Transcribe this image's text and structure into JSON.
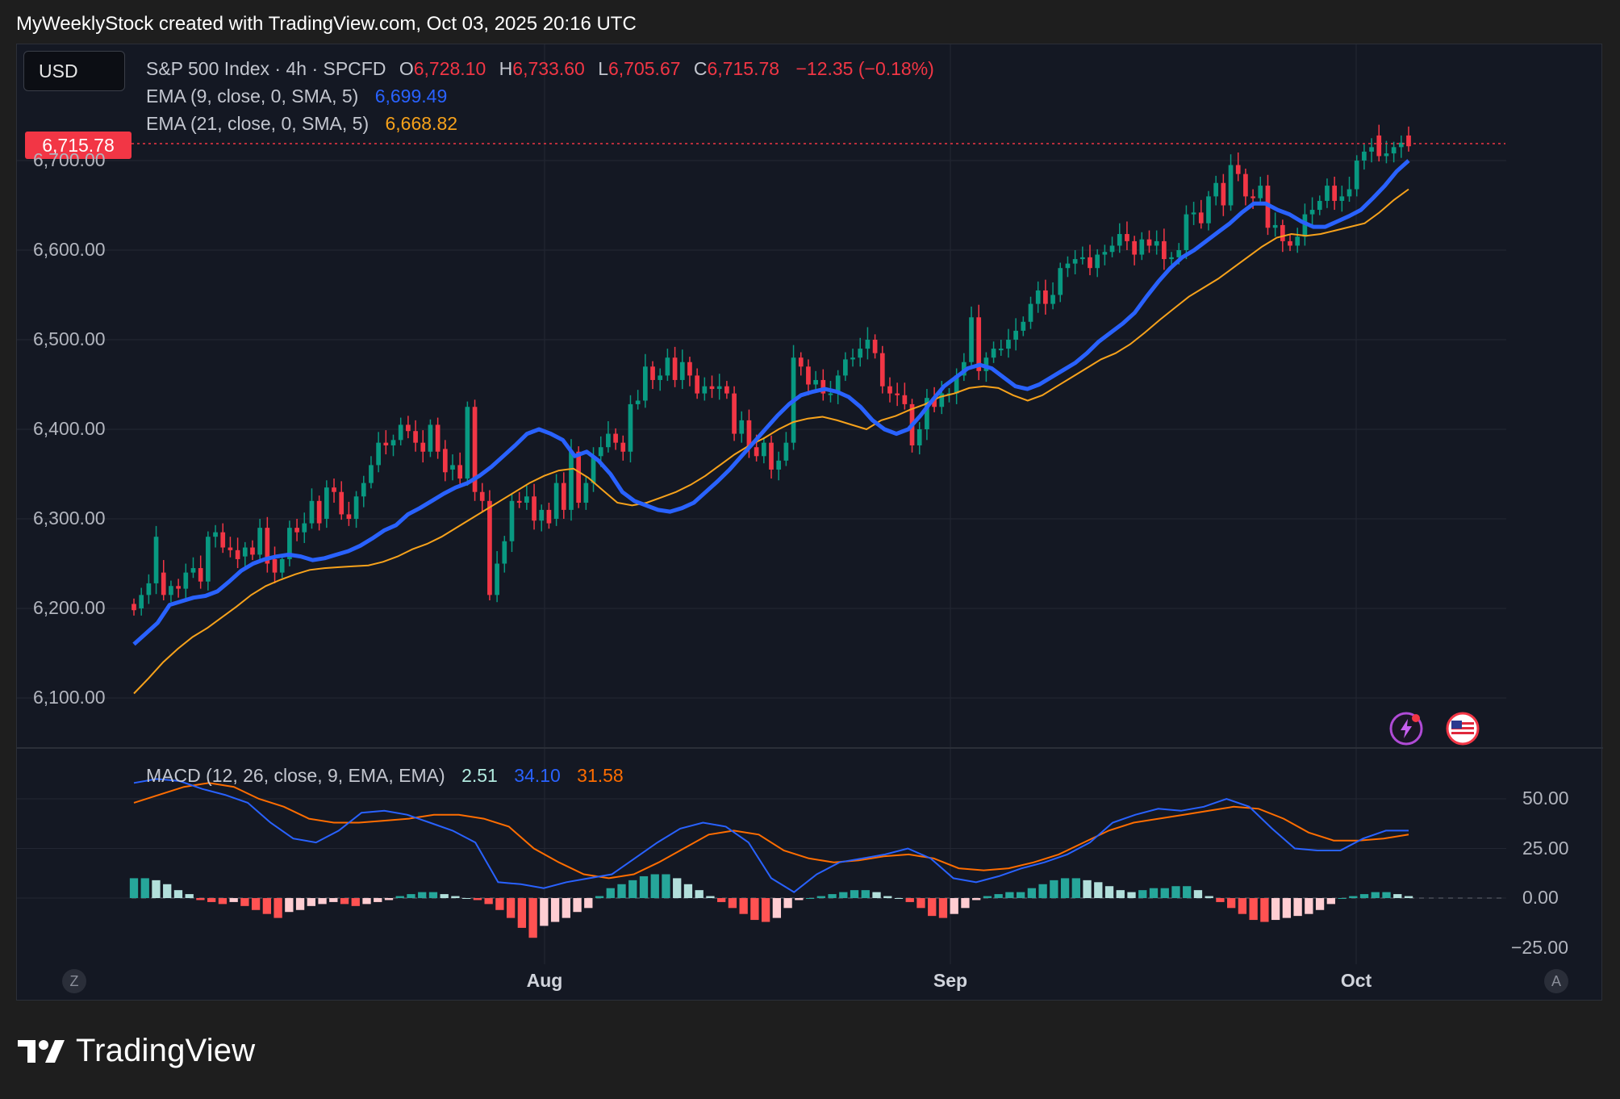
{
  "caption": "MyWeeklyStock created with TradingView.com, Oct 03, 2025 20:16 UTC",
  "currency": "USD",
  "legend": {
    "symbol": "S&P 500 Index · 4h · SPCFD",
    "o_label": "O",
    "o_value": "6,728.10",
    "h_label": "H",
    "h_value": "6,733.60",
    "l_label": "L",
    "l_value": "6,705.67",
    "c_label": "C",
    "c_value": "6,715.78",
    "change": "−12.35 (−0.18%)",
    "ema9_label": "EMA (9, close, 0, SMA, 5)",
    "ema9_value": "6,699.49",
    "ema21_label": "EMA (21, close, 0, SMA, 5)",
    "ema21_value": "6,668.82",
    "macd_label": "MACD (12, 26, close, 9, EMA, EMA)",
    "macd_hist": "2.51",
    "macd_value": "34.10",
    "macd_signal": "31.58"
  },
  "last_price_badge": "6,715.78",
  "brand": "TradingView",
  "colors": {
    "up_candle": "#089981",
    "down_candle": "#f23645",
    "ema9": "#2962ff",
    "ema21": "#f7a21b",
    "macd": "#2962ff",
    "signal": "#ff6d00",
    "hist_pos_strong": "#26a69a",
    "hist_pos_weak": "#b2dfdb",
    "hist_neg_strong": "#ff5252",
    "hist_neg_weak": "#ffcdd2"
  },
  "chart_data": {
    "type": "candlestick",
    "title": "S&P 500 Index · 4h · SPCFD",
    "x_ticks": [
      "Aug",
      "Sep",
      "Oct"
    ],
    "y_ticks": [
      "6,100.00",
      "6,200.00",
      "6,300.00",
      "6,400.00",
      "6,500.00",
      "6,600.00",
      "6,700.00"
    ],
    "ylim": [
      6045,
      6765
    ],
    "macd_y_ticks": [
      "50.00",
      "25.00",
      "0.00",
      "−25.00"
    ],
    "macd_ylim": [
      -32,
      62
    ],
    "grid": true,
    "icons": [
      "flash-alert-icon",
      "us-flag-icon"
    ],
    "candles": [
      [
        6205,
        6198
      ],
      [
        6200,
        6215
      ],
      [
        6215,
        6228
      ],
      [
        6228,
        6280
      ],
      [
        6240,
        6215
      ],
      [
        6215,
        6225
      ],
      [
        6225,
        6222
      ],
      [
        6222,
        6240
      ],
      [
        6240,
        6245
      ],
      [
        6245,
        6230
      ],
      [
        6230,
        6280
      ],
      [
        6280,
        6285
      ],
      [
        6285,
        6268
      ],
      [
        6268,
        6265
      ],
      [
        6265,
        6255
      ],
      [
        6258,
        6268
      ],
      [
        6268,
        6260
      ],
      [
        6260,
        6290
      ],
      [
        6290,
        6250
      ],
      [
        6255,
        6240
      ],
      [
        6240,
        6255
      ],
      [
        6255,
        6290
      ],
      [
        6290,
        6285
      ],
      [
        6285,
        6295
      ],
      [
        6295,
        6320
      ],
      [
        6320,
        6295
      ],
      [
        6300,
        6335
      ],
      [
        6335,
        6330
      ],
      [
        6330,
        6305
      ],
      [
        6305,
        6300
      ],
      [
        6300,
        6325
      ],
      [
        6325,
        6340
      ],
      [
        6340,
        6360
      ],
      [
        6360,
        6385
      ],
      [
        6385,
        6382
      ],
      [
        6382,
        6388
      ],
      [
        6388,
        6405
      ],
      [
        6405,
        6398
      ],
      [
        6398,
        6385
      ],
      [
        6385,
        6375
      ],
      [
        6375,
        6405
      ],
      [
        6405,
        6375
      ],
      [
        6378,
        6352
      ],
      [
        6355,
        6360
      ],
      [
        6360,
        6345
      ],
      [
        6345,
        6425
      ],
      [
        6425,
        6330
      ],
      [
        6330,
        6320
      ],
      [
        6320,
        6215
      ],
      [
        6215,
        6250
      ],
      [
        6250,
        6275
      ],
      [
        6275,
        6320
      ],
      [
        6320,
        6318
      ],
      [
        6318,
        6325
      ],
      [
        6325,
        6298
      ],
      [
        6298,
        6310
      ],
      [
        6310,
        6295
      ],
      [
        6300,
        6340
      ],
      [
        6340,
        6310
      ],
      [
        6310,
        6375
      ],
      [
        6375,
        6318
      ],
      [
        6318,
        6340
      ],
      [
        6340,
        6370
      ],
      [
        6370,
        6380
      ],
      [
        6380,
        6395
      ],
      [
        6395,
        6385
      ],
      [
        6385,
        6375
      ],
      [
        6375,
        6428
      ],
      [
        6428,
        6432
      ],
      [
        6432,
        6470
      ],
      [
        6470,
        6455
      ],
      [
        6455,
        6460
      ],
      [
        6460,
        6480
      ],
      [
        6480,
        6455
      ],
      [
        6455,
        6475
      ],
      [
        6475,
        6460
      ],
      [
        6460,
        6440
      ],
      [
        6440,
        6448
      ],
      [
        6448,
        6445
      ],
      [
        6445,
        6448
      ],
      [
        6448,
        6440
      ],
      [
        6440,
        6395
      ],
      [
        6395,
        6410
      ],
      [
        6410,
        6380
      ],
      [
        6380,
        6370
      ],
      [
        6370,
        6385
      ],
      [
        6385,
        6355
      ],
      [
        6355,
        6365
      ],
      [
        6365,
        6385
      ],
      [
        6385,
        6480
      ],
      [
        6480,
        6470
      ],
      [
        6470,
        6450
      ],
      [
        6450,
        6455
      ],
      [
        6455,
        6440
      ],
      [
        6440,
        6440
      ],
      [
        6440,
        6460
      ],
      [
        6460,
        6478
      ],
      [
        6478,
        6480
      ],
      [
        6480,
        6490
      ],
      [
        6490,
        6500
      ],
      [
        6500,
        6485
      ],
      [
        6485,
        6448
      ],
      [
        6448,
        6440
      ],
      [
        6440,
        6438
      ],
      [
        6438,
        6428
      ],
      [
        6428,
        6382
      ],
      [
        6382,
        6400
      ],
      [
        6400,
        6435
      ],
      [
        6435,
        6425
      ],
      [
        6425,
        6440
      ],
      [
        6440,
        6440
      ],
      [
        6440,
        6460
      ],
      [
        6460,
        6475
      ],
      [
        6475,
        6525
      ],
      [
        6525,
        6465
      ],
      [
        6465,
        6480
      ],
      [
        6480,
        6490
      ],
      [
        6490,
        6490
      ],
      [
        6490,
        6500
      ],
      [
        6500,
        6510
      ],
      [
        6510,
        6520
      ],
      [
        6520,
        6540
      ],
      [
        6540,
        6555
      ],
      [
        6555,
        6540
      ],
      [
        6540,
        6550
      ],
      [
        6550,
        6580
      ],
      [
        6580,
        6585
      ],
      [
        6585,
        6590
      ],
      [
        6590,
        6592
      ],
      [
        6592,
        6580
      ],
      [
        6580,
        6595
      ],
      [
        6595,
        6598
      ],
      [
        6598,
        6605
      ],
      [
        6605,
        6618
      ],
      [
        6618,
        6610
      ],
      [
        6610,
        6595
      ],
      [
        6595,
        6612
      ],
      [
        6612,
        6605
      ],
      [
        6605,
        6610
      ],
      [
        6610,
        6590
      ],
      [
        6590,
        6592
      ],
      [
        6592,
        6600
      ],
      [
        6600,
        6640
      ],
      [
        6640,
        6642
      ],
      [
        6642,
        6630
      ],
      [
        6630,
        6660
      ],
      [
        6660,
        6675
      ],
      [
        6675,
        6650
      ],
      [
        6650,
        6695
      ],
      [
        6695,
        6685
      ],
      [
        6685,
        6660
      ],
      [
        6660,
        6658
      ],
      [
        6658,
        6672
      ],
      [
        6672,
        6625
      ],
      [
        6625,
        6628
      ],
      [
        6628,
        6610
      ],
      [
        6610,
        6605
      ],
      [
        6605,
        6615
      ],
      [
        6615,
        6640
      ],
      [
        6640,
        6645
      ],
      [
        6645,
        6655
      ],
      [
        6655,
        6672
      ],
      [
        6672,
        6655
      ],
      [
        6655,
        6660
      ],
      [
        6660,
        6668
      ],
      [
        6668,
        6700
      ],
      [
        6700,
        6710
      ],
      [
        6710,
        6715
      ],
      [
        6728,
        6705
      ],
      [
        6705,
        6708
      ],
      [
        6708,
        6715
      ],
      [
        6715,
        6720
      ],
      [
        6728,
        6716
      ]
    ],
    "ema9_series": [
      6160,
      6172,
      6184,
      6204,
      6208,
      6212,
      6214,
      6219,
      6230,
      6242,
      6250,
      6255,
      6258,
      6260,
      6258,
      6254,
      6256,
      6260,
      6264,
      6270,
      6278,
      6287,
      6293,
      6305,
      6312,
      6320,
      6328,
      6335,
      6340,
      6348,
      6358,
      6370,
      6382,
      6395,
      6400,
      6395,
      6388,
      6370,
      6375,
      6365,
      6350,
      6330,
      6320,
      6315,
      6310,
      6308,
      6312,
      6318,
      6330,
      6342,
      6355,
      6370,
      6385,
      6400,
      6415,
      6428,
      6438,
      6442,
      6445,
      6442,
      6436,
      6425,
      6410,
      6400,
      6395,
      6400,
      6415,
      6432,
      6448,
      6458,
      6468,
      6472,
      6468,
      6458,
      6448,
      6445,
      6450,
      6458,
      6466,
      6474,
      6485,
      6498,
      6508,
      6518,
      6530,
      6548,
      6565,
      6580,
      6592,
      6600,
      6610,
      6620,
      6630,
      6642,
      6652,
      6652,
      6645,
      6640,
      6632,
      6626,
      6626,
      6632,
      6638,
      6645,
      6658,
      6672,
      6688,
      6700
    ],
    "ema21_series": [
      6105,
      6122,
      6140,
      6155,
      6168,
      6178,
      6190,
      6202,
      6215,
      6225,
      6232,
      6238,
      6243,
      6245,
      6246,
      6247,
      6248,
      6252,
      6258,
      6266,
      6272,
      6280,
      6290,
      6300,
      6310,
      6320,
      6330,
      6340,
      6348,
      6354,
      6356,
      6346,
      6332,
      6318,
      6315,
      6318,
      6324,
      6330,
      6338,
      6348,
      6360,
      6372,
      6382,
      6390,
      6400,
      6408,
      6412,
      6414,
      6410,
      6405,
      6400,
      6410,
      6415,
      6422,
      6428,
      6436,
      6440,
      6446,
      6448,
      6446,
      6438,
      6432,
      6438,
      6448,
      6458,
      6468,
      6478,
      6485,
      6495,
      6508,
      6522,
      6535,
      6548,
      6558,
      6568,
      6580,
      6592,
      6604,
      6614,
      6618,
      6616,
      6618,
      6622,
      6626,
      6630,
      6642,
      6656,
      6668
    ],
    "macd_series": [
      58,
      60,
      59,
      55,
      52,
      48,
      38,
      30,
      28,
      34,
      43,
      44,
      42,
      38,
      34,
      28,
      8,
      7,
      5,
      8,
      10,
      12,
      20,
      28,
      35,
      38,
      36,
      28,
      10,
      3,
      12,
      18,
      20,
      22,
      25,
      20,
      10,
      8,
      11,
      15,
      18,
      22,
      28,
      38,
      42,
      45,
      44,
      46,
      50,
      46,
      35,
      25,
      24,
      24,
      30,
      34,
      34
    ],
    "signal_series": [
      48,
      52,
      56,
      58,
      56,
      50,
      46,
      40,
      38,
      38,
      39,
      40,
      42,
      42,
      40,
      36,
      25,
      18,
      12,
      10,
      12,
      18,
      25,
      32,
      34,
      32,
      24,
      20,
      18,
      19,
      21,
      22,
      20,
      15,
      14,
      15,
      18,
      22,
      28,
      34,
      38,
      40,
      42,
      44,
      46,
      45,
      40,
      33,
      29,
      29,
      30,
      32
    ],
    "histogram": [
      10,
      10,
      9,
      7,
      4,
      2,
      -1,
      -2,
      -3,
      -2,
      -4,
      -6,
      -8,
      -10,
      -7,
      -6,
      -4,
      -3,
      -2,
      -3,
      -4,
      -3,
      -2,
      -1,
      1,
      2,
      3,
      3,
      2,
      1,
      0,
      -1,
      -3,
      -6,
      -10,
      -15,
      -20,
      -14,
      -12,
      -10,
      -7,
      -5,
      1,
      5,
      7,
      9,
      11,
      12,
      12,
      10,
      7,
      4,
      1,
      -2,
      -5,
      -8,
      -11,
      -12,
      -10,
      -5,
      -1,
      0,
      1,
      2,
      3,
      4,
      4,
      3,
      1,
      0,
      -2,
      -5,
      -9,
      -10,
      -8,
      -5,
      -1,
      1,
      2,
      3,
      3,
      5,
      7,
      9,
      10,
      10,
      9,
      8,
      6,
      4,
      3,
      4,
      5,
      5,
      6,
      6,
      4,
      1,
      -2,
      -5,
      -8,
      -11,
      -12,
      -11,
      -10,
      -9,
      -8,
      -6,
      -3,
      0,
      1,
      2,
      3,
      3,
      2,
      1
    ]
  }
}
